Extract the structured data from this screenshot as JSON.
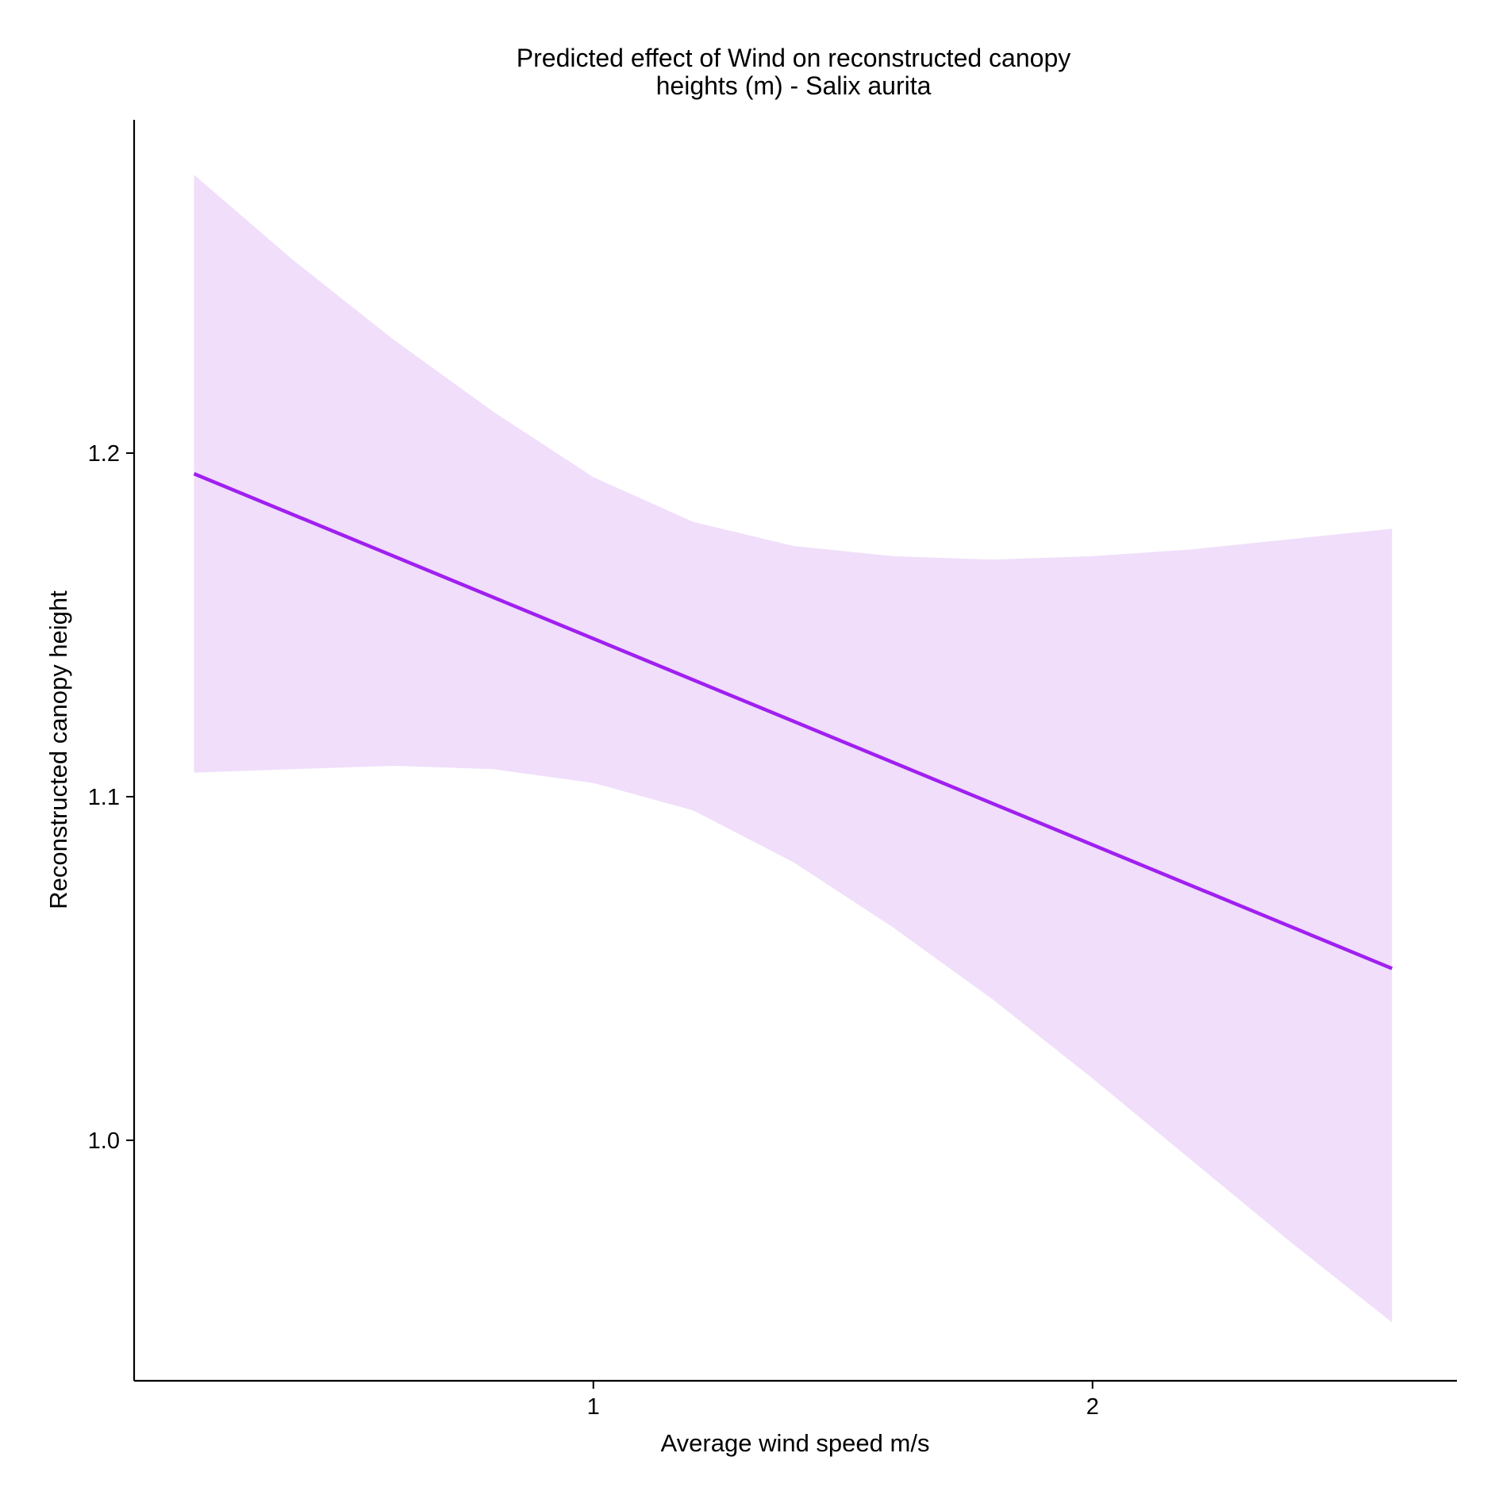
{
  "chart_data": {
    "type": "line",
    "title_lines": [
      "Predicted effect of Wind on reconstructed canopy",
      "heights (m) - Salix aurita"
    ],
    "xlabel": "Average wind speed m/s",
    "ylabel": "Reconstructed canopy height",
    "xlim": [
      0.08,
      2.73
    ],
    "ylim": [
      0.93,
      1.297
    ],
    "x_ticks": [
      {
        "value": 1,
        "label": "1"
      },
      {
        "value": 2,
        "label": "2"
      }
    ],
    "y_ticks": [
      {
        "value": 1.0,
        "label": "1.0"
      },
      {
        "value": 1.1,
        "label": "1.1"
      },
      {
        "value": 1.2,
        "label": "1.2"
      }
    ],
    "grid": false,
    "series": [
      {
        "x": [
          0.2,
          0.4,
          0.6,
          0.8,
          1.0,
          1.2,
          1.4,
          1.6,
          1.8,
          2.0,
          2.2,
          2.4,
          2.6
        ],
        "y": [
          1.194,
          1.182,
          1.17,
          1.158,
          1.146,
          1.134,
          1.122,
          1.11,
          1.098,
          1.086,
          1.074,
          1.062,
          1.065
        ],
        "ci_upper": [
          1.281,
          1.256,
          1.233,
          1.212,
          1.193,
          1.18,
          1.173,
          1.17,
          1.169,
          1.17,
          1.172,
          1.175,
          1.178
        ],
        "ci_lower": [
          1.107,
          1.108,
          1.109,
          1.108,
          1.104,
          1.096,
          1.081,
          1.062,
          1.041,
          1.018,
          0.994,
          0.97,
          0.947
        ],
        "color": "#A020F0",
        "ribbon_color": "#F0DEFB"
      }
    ]
  }
}
